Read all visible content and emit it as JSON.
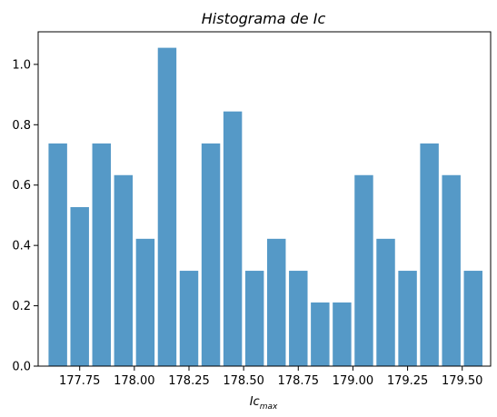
{
  "chart_data": {
    "type": "bar",
    "title": "Histograma de Ic",
    "xlabel_main": "Ic",
    "xlabel_sub": "max",
    "ylabel": "",
    "bar_color": "#5599c7",
    "x": [
      177.65,
      177.75,
      177.85,
      177.95,
      178.05,
      178.15,
      178.25,
      178.35,
      178.45,
      178.55,
      178.65,
      178.75,
      178.85,
      178.95,
      179.05,
      179.15,
      179.25,
      179.35,
      179.45,
      179.55
    ],
    "values": [
      0.738,
      0.527,
      0.738,
      0.633,
      0.422,
      1.055,
      0.316,
      0.738,
      0.844,
      0.316,
      0.422,
      0.316,
      0.211,
      0.211,
      0.633,
      0.422,
      0.316,
      0.738,
      0.633,
      0.316
    ],
    "bin_width": 0.1,
    "xlim": [
      177.56,
      179.63
    ],
    "ylim": [
      0,
      1.108
    ],
    "xticks": [
      177.75,
      178.0,
      178.25,
      178.5,
      178.75,
      179.0,
      179.25,
      179.5
    ],
    "xtick_labels": [
      "177.75",
      "178.00",
      "178.25",
      "178.50",
      "178.75",
      "179.00",
      "179.25",
      "179.50"
    ],
    "yticks": [
      0.0,
      0.2,
      0.4,
      0.6,
      0.8,
      1.0
    ],
    "ytick_labels": [
      "0.0",
      "0.2",
      "0.4",
      "0.6",
      "0.8",
      "1.0"
    ],
    "grid": false,
    "legend": "none"
  }
}
